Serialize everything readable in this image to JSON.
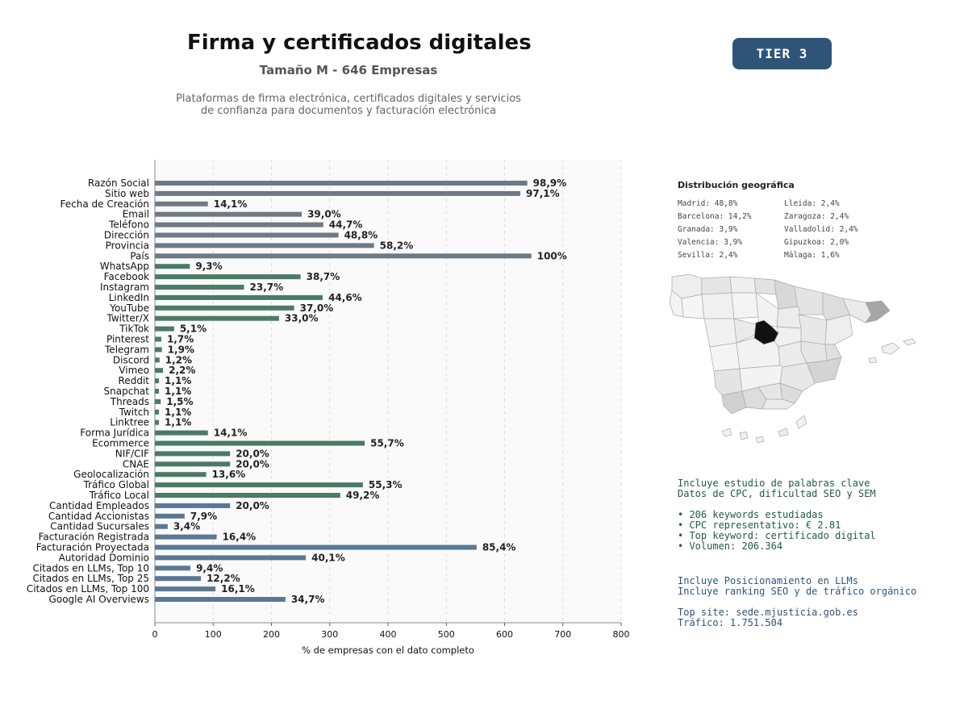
{
  "header": {
    "title": "Firma y certificados digitales",
    "subtitle": "Tamaño M - 646 Empresas",
    "description_line1": "Plataformas de firma electrónica, certificados digitales y servicios",
    "description_line2": "de confianza para documentos y facturación electrónica",
    "tier_badge": "TIER 3"
  },
  "geo": {
    "title": "Distribución geográfica",
    "col1": [
      "Madrid: 48,8%",
      "Barcelona: 14,2%",
      "Granada: 3,9%",
      "Valencia: 3,9%",
      "Sevilla: 2,4%"
    ],
    "col2": [
      "Lleida: 2,4%",
      "Zaragoza: 2,4%",
      "Valladolid: 2,4%",
      "Gipuzkoa: 2,0%",
      "Málaga: 1,6%"
    ]
  },
  "seo": {
    "line1": "Incluye estudio de palabras clave",
    "line2": "Datos de CPC, dificultad SEO y SEM",
    "bullets": [
      "• 206 keywords estudiadas",
      "• CPC representativo: € 2.81",
      "• Top keyword: certificado digital",
      "• Volumen: 206.364"
    ]
  },
  "llm": {
    "line1": "Incluye Posicionamiento en LLMs",
    "line2": "Incluye ranking SEO y de tráfico orgánico",
    "top_site": "Top site: sede.mjusticia.gob.es",
    "traffic": "Tráfico: 1.751.504"
  },
  "colors": {
    "gray": "#6e7a85",
    "green": "#4a7a68",
    "blue": "#5a7894",
    "badge": "#2e5578",
    "map_highlight": "#111111"
  },
  "chart_data": {
    "type": "bar",
    "orientation": "horizontal",
    "xlabel": "% de empresas con el dato completo",
    "xlim": [
      0,
      800
    ],
    "xticks": [
      0,
      100,
      200,
      300,
      400,
      500,
      600,
      700,
      800
    ],
    "grid": "vertical dashed",
    "categories": [
      "Razón Social",
      "Sitio web",
      "Fecha de Creación",
      "Email",
      "Teléfono",
      "Dirección",
      "Provincia",
      "País",
      "WhatsApp",
      "Facebook",
      "Instagram",
      "LinkedIn",
      "YouTube",
      "Twitter/X",
      "TikTok",
      "Pinterest",
      "Telegram",
      "Discord",
      "Vimeo",
      "Reddit",
      "Snapchat",
      "Threads",
      "Twitch",
      "Linktree",
      "Forma Jurídica",
      "Ecommerce",
      "NIF/CIF",
      "CNAE",
      "Geolocalización",
      "Tráfico Global",
      "Tráfico Local",
      "Cantidad Empleados",
      "Cantidad Accionistas",
      "Cantidad Sucursales",
      "Facturación Registrada",
      "Facturación Proyectada",
      "Autoridad Dominio",
      "Citados en LLMs, Top 10",
      "Citados en LLMs, Top 25",
      "Citados en LLMs, Top 100",
      "Google AI Overviews"
    ],
    "values": [
      639,
      627,
      91,
      252,
      289,
      315,
      376,
      646,
      60,
      250,
      153,
      288,
      239,
      213,
      33,
      11,
      12,
      8,
      14,
      7,
      7,
      10,
      7,
      7,
      91,
      360,
      129,
      129,
      88,
      357,
      318,
      129,
      51,
      22,
      106,
      552,
      259,
      61,
      79,
      104,
      224
    ],
    "labels": [
      "98,9%",
      "97,1%",
      "14,1%",
      "39,0%",
      "44,7%",
      "48,8%",
      "58,2%",
      "100%",
      "9,3%",
      "38,7%",
      "23,7%",
      "44,6%",
      "37,0%",
      "33,0%",
      "5,1%",
      "1,7%",
      "1,9%",
      "1,2%",
      "2,2%",
      "1,1%",
      "1,1%",
      "1,5%",
      "1,1%",
      "1,1%",
      "14,1%",
      "55,7%",
      "20,0%",
      "20,0%",
      "13,6%",
      "55,3%",
      "49,2%",
      "20,0%",
      "7,9%",
      "3,4%",
      "16,4%",
      "85,4%",
      "40,1%",
      "9,4%",
      "12,2%",
      "16,1%",
      "34,7%"
    ],
    "groups": [
      "gray",
      "gray",
      "gray",
      "gray",
      "gray",
      "gray",
      "gray",
      "gray",
      "green",
      "green",
      "green",
      "green",
      "green",
      "green",
      "green",
      "green",
      "green",
      "green",
      "green",
      "green",
      "green",
      "green",
      "green",
      "green",
      "green",
      "green",
      "green",
      "green",
      "green",
      "green",
      "green",
      "blue",
      "blue",
      "blue",
      "blue",
      "blue",
      "blue",
      "blue",
      "blue",
      "blue",
      "blue"
    ]
  }
}
